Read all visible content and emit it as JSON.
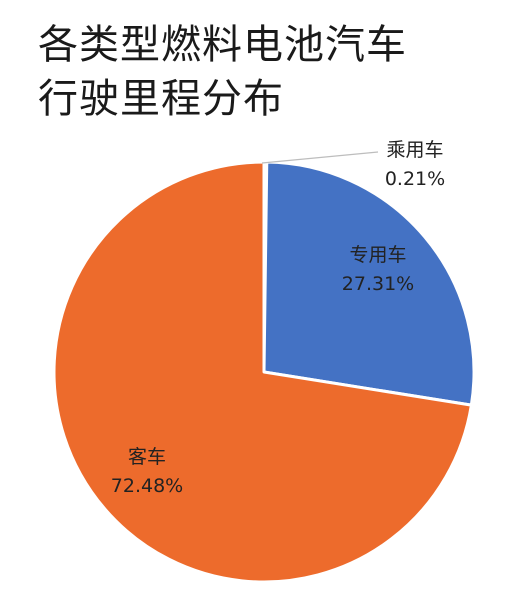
{
  "chart_data": {
    "type": "pie",
    "title_lines": [
      "各类型燃料电池汽车",
      "行驶里程分布"
    ],
    "slices": [
      {
        "label": "乘用车",
        "value": 0.21,
        "value_text": "0.21%",
        "color": "#4472c4"
      },
      {
        "label": "专用车",
        "value": 27.31,
        "value_text": "27.31%",
        "color": "#4472c4"
      },
      {
        "label": "客车",
        "value": 72.48,
        "value_text": "72.48%",
        "color": "#ed6b2c"
      }
    ]
  }
}
